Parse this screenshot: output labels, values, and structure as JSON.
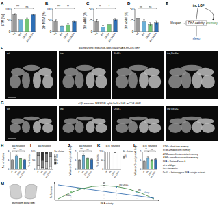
{
  "panel_labels": [
    "A",
    "B",
    "C",
    "D",
    "E",
    "F",
    "G",
    "H",
    "I",
    "J",
    "K",
    "L",
    "M"
  ],
  "chart_data": [
    {
      "type": "bar",
      "y_label": "STM (%)",
      "categories": [
        "wt",
        "inc",
        "Dc0/+",
        "inc;Dc0/+"
      ],
      "values": [
        76,
        52,
        56,
        74
      ],
      "errors": [
        3,
        4,
        4,
        3
      ],
      "colors": [
        "#9a9a9a",
        "#6baed6",
        "#74c476",
        "#2f6fb5"
      ],
      "ylim": [
        0,
        100
      ],
      "yticks": [
        0,
        50,
        100
      ],
      "annotations": [
        "***",
        "ns"
      ]
    },
    {
      "type": "bar",
      "y_label": "3 h MTM (%)",
      "categories": [
        "wt",
        "inc",
        "Dc0/+",
        "inc;Dc0/+"
      ],
      "values": [
        48,
        24,
        30,
        44
      ],
      "errors": [
        4,
        4,
        4,
        4
      ],
      "colors": [
        "#9a9a9a",
        "#6baed6",
        "#74c476",
        "#2f6fb5"
      ],
      "ylim": [
        0,
        100
      ],
      "yticks": [
        0,
        50,
        100
      ],
      "annotations": [
        "***",
        "**"
      ]
    },
    {
      "type": "bar",
      "y_label": "3 h ARM (%)",
      "categories": [
        "wt",
        "inc",
        "Dc0/+",
        "inc;Dc0/+"
      ],
      "values": [
        24,
        10,
        16,
        26
      ],
      "errors": [
        3,
        3,
        3,
        3
      ],
      "colors": [
        "#9a9a9a",
        "#6baed6",
        "#74c476",
        "#2f6fb5"
      ],
      "ylim": [
        0,
        50
      ],
      "yticks": [
        0,
        25,
        50
      ],
      "annotations": [
        "**",
        "*"
      ]
    },
    {
      "type": "bar",
      "y_label": "3 h ASM (%)",
      "categories": [
        "wt",
        "inc",
        "Dc0/+",
        "inc;Dc0/+"
      ],
      "values": [
        30,
        22,
        16,
        20
      ],
      "errors": [
        4,
        4,
        4,
        4
      ],
      "colors": [
        "#9a9a9a",
        "#6baed6",
        "#74c476",
        "#2f6fb5"
      ],
      "ylim": [
        0,
        50
      ],
      "yticks": [
        0,
        25,
        50
      ],
      "annotations": [
        "ns",
        "ns"
      ]
    },
    {
      "type": "bar",
      "title": "α/β neurons",
      "y_label": "No. of clusters",
      "categories": [
        "wt",
        "inc",
        "Dc0/+",
        "inc;Dc0/+"
      ],
      "values": [
        4.2,
        6.1,
        4.8,
        4.3
      ],
      "errors": [
        0.2,
        0.3,
        0.2,
        0.2
      ],
      "colors": [
        "#9a9a9a",
        "#6baed6",
        "#74c476",
        "#2f6fb5"
      ],
      "ylim": [
        0,
        8
      ],
      "yticks": [
        0,
        4,
        8
      ],
      "annotations": [
        "***",
        "ns"
      ]
    },
    {
      "type": "bar",
      "stacked": true,
      "title": "α/β neurons",
      "y_label": "% of brains",
      "legend_title": "No. clusters",
      "categories": [
        "wt",
        "inc",
        "Dc0/+",
        "inc;Dc0/+"
      ],
      "series": [
        {
          "name": "3",
          "color": "#ffffff",
          "values": [
            20,
            0,
            5,
            15
          ]
        },
        {
          "name": "4",
          "color": "#cccccc",
          "values": [
            60,
            10,
            40,
            55
          ]
        },
        {
          "name": "5",
          "color": "#888888",
          "values": [
            20,
            40,
            45,
            30
          ]
        },
        {
          "name": "6",
          "color": "#333333",
          "values": [
            0,
            50,
            10,
            0
          ]
        }
      ],
      "ylim": [
        0,
        100
      ],
      "yticks": [
        0,
        50,
        100
      ]
    },
    {
      "type": "bar",
      "title": "α/β neurons",
      "y_label": "Volume (×10³ µm³) per cell body",
      "categories": [
        "wt",
        "inc",
        "Dc0/+",
        "inc;Dc0/+"
      ],
      "values": [
        1.0,
        1.6,
        1.2,
        1.1
      ],
      "errors": [
        0.1,
        0.15,
        0.1,
        0.1
      ],
      "colors": [
        "#9a9a9a",
        "#6baed6",
        "#74c476",
        "#2f6fb5"
      ],
      "ylim": [
        0,
        2
      ],
      "yticks": [
        0,
        1,
        2
      ],
      "annotations": [
        "***",
        "ns"
      ]
    },
    {
      "type": "bar",
      "stacked": true,
      "title": "α'/β' neurons",
      "y_label": "% of brains",
      "legend_title": "No. clusters",
      "categories": [
        "wt",
        "inc",
        "Dc0/+",
        "inc;Dc0/+"
      ],
      "series": [
        {
          "name": "1",
          "color": "#ffffff",
          "values": [
            100,
            100,
            95,
            100
          ]
        },
        {
          "name": "2",
          "color": "#888888",
          "values": [
            0,
            0,
            5,
            0
          ]
        }
      ],
      "ylim": [
        0,
        100
      ],
      "yticks": [
        0,
        50,
        100
      ]
    },
    {
      "type": "bar",
      "title": "α'/β' neurons",
      "y_label": "Volume (×10³ µm³) per cell body",
      "categories": [
        "wt",
        "inc",
        "Dc0/+",
        "inc;Dc0/+"
      ],
      "values": [
        0.9,
        1.3,
        1.0,
        1.1
      ],
      "errors": [
        0.1,
        0.1,
        0.1,
        0.1
      ],
      "colors": [
        "#9a9a9a",
        "#6baed6",
        "#74c476",
        "#2f6fb5"
      ],
      "ylim": [
        0,
        2
      ],
      "yticks": [
        0,
        1,
        2
      ],
      "annotations": [
        "**",
        "ns"
      ]
    }
  ],
  "diagram_e": {
    "nodes": [
      "inc LOF",
      "lifespan",
      "PKA activity",
      "memory",
      "sleep"
    ]
  },
  "images": {
    "titles": [
      "α/β neurons: MB594B-split-Gal4>UAS-mCD8-GFP",
      "α'/β' neurons: MB370B-split-Gal4>UAS-mCD8-GFP"
    ],
    "labels": [
      "wt",
      "inc",
      "Dc0/+",
      "inc;Dc0/+"
    ]
  },
  "key": [
    "STM = short-term memory",
    "MTM = middle-term memory",
    "ARM = anesthesia-resistant memory",
    "ASM = anesthesia-sensitive memory",
    "PKA = Protein Kinase A",
    "wt = wildtype",
    "inc = insomniac",
    "Dc0/+ = heterozygous PKA catalytic subunit"
  ],
  "schematic_m": {
    "mb_label": "Mushroom body (MB)",
    "y_label": "Performance",
    "x_label": "PKA activity",
    "curves": [
      "memory",
      "sleep"
    ],
    "points": [
      "wt",
      "Dc0/+",
      "inc",
      "inc;Dc0/+"
    ]
  }
}
